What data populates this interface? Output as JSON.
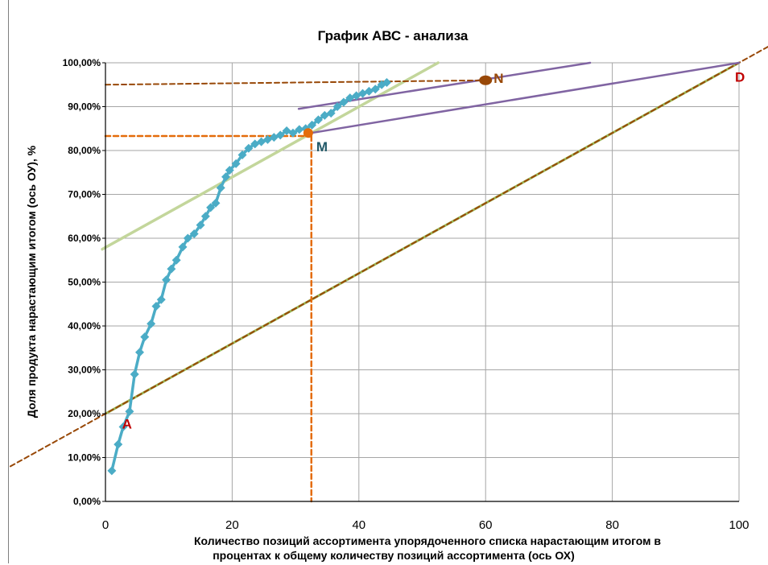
{
  "chart_data": {
    "type": "line",
    "title": "График АВС - анализа",
    "ylabel": "Доля продукта нарастающим итогом (ось ОУ), %",
    "xlabel_line1": "Количество позиций ассортимента упорядоченного списка нарастающим итогом в",
    "xlabel_line2": "процентах к общему количеству позиций ассортимента (ось ОХ)",
    "xlim": [
      0,
      100
    ],
    "ylim": [
      0,
      100
    ],
    "x_ticks": [
      "0",
      "20",
      "40",
      "60",
      "80",
      "100"
    ],
    "x_tick_values": [
      0,
      20,
      40,
      60,
      80,
      100
    ],
    "y_ticks": [
      "0,00%",
      "10,00%",
      "20,00%",
      "30,00%",
      "40,00%",
      "50,00%",
      "60,00%",
      "70,00%",
      "80,00%",
      "90,00%",
      "100,00%"
    ],
    "y_tick_values": [
      0,
      10,
      20,
      30,
      40,
      50,
      60,
      70,
      80,
      90,
      100
    ],
    "grid": true,
    "colors": {
      "abc_curve": "#4bacc6",
      "tangent_green": "#c3d69b",
      "diagonal_green": "#9bbb59",
      "dashed_brown": "#984807",
      "dashed_orange": "#e46c0a",
      "purple": "#8064a2",
      "point_m": "#e46c0a",
      "point_n": "#984807",
      "label_red": "#c00000",
      "label_teal": "#215968",
      "grid": "#a6a6a6",
      "axis": "#000000"
    },
    "abc_curve": {
      "x": [
        1.0,
        2.0,
        2.8,
        3.8,
        4.6,
        5.4,
        6.2,
        7.2,
        8.0,
        8.8,
        9.6,
        10.4,
        11.2,
        12.2,
        13.0,
        14.0,
        15.0,
        15.8,
        16.6,
        17.4,
        18.2,
        19.0,
        19.6,
        20.6,
        21.6,
        22.6,
        23.6,
        24.6,
        25.6,
        26.6,
        27.6,
        28.6,
        29.6,
        30.6,
        31.6,
        32.6,
        33.6,
        34.6,
        35.6,
        36.6,
        37.6,
        38.6,
        39.6,
        40.6,
        41.6,
        42.6,
        43.6,
        44.4
      ],
      "y": [
        7.0,
        13.0,
        17.0,
        20.5,
        29.0,
        34.0,
        37.5,
        40.5,
        44.5,
        46.0,
        50.5,
        53.0,
        55.0,
        58.0,
        60.0,
        61.0,
        63.0,
        65.0,
        67.0,
        68.0,
        71.5,
        74.0,
        75.5,
        77.0,
        79.0,
        80.5,
        81.5,
        82.0,
        82.5,
        83.0,
        83.5,
        84.5,
        84.0,
        84.8,
        85.0,
        85.8,
        87.0,
        88.0,
        88.5,
        90.0,
        91.0,
        92.0,
        92.5,
        93.0,
        93.5,
        94.0,
        95.0,
        95.5
      ]
    },
    "tangent_line": {
      "x": [
        -0.5,
        52.5
      ],
      "y": [
        57.5,
        100
      ]
    },
    "diagonal_line": {
      "x": [
        0,
        100
      ],
      "y": [
        20,
        100
      ]
    },
    "dashed_diagonal": {
      "x": [
        -15,
        105
      ],
      "y": [
        8,
        104
      ]
    },
    "purple_lines": [
      {
        "x": [
          30.5,
          76.5
        ],
        "y": [
          89.5,
          100
        ]
      },
      {
        "x": [
          32.5,
          100
        ],
        "y": [
          84,
          100
        ]
      }
    ],
    "dashed_horizontal_n": {
      "x": [
        0,
        60
      ],
      "y": [
        95,
        96
      ]
    },
    "dashed_horizontal_m": {
      "x": [
        0,
        32.5
      ],
      "y": [
        83.3,
        83.3
      ]
    },
    "dashed_vertical_m": {
      "x": [
        32.5,
        32.5
      ],
      "y": [
        83.3,
        0
      ]
    },
    "points": [
      {
        "label": "A",
        "x": 3.0,
        "y": 21.0
      },
      {
        "label": "M",
        "x": 32.0,
        "y": 84.0
      },
      {
        "label": "N",
        "x": 60.0,
        "y": 96.0
      },
      {
        "label": "D",
        "x": 100.0,
        "y": 99.0
      }
    ]
  }
}
